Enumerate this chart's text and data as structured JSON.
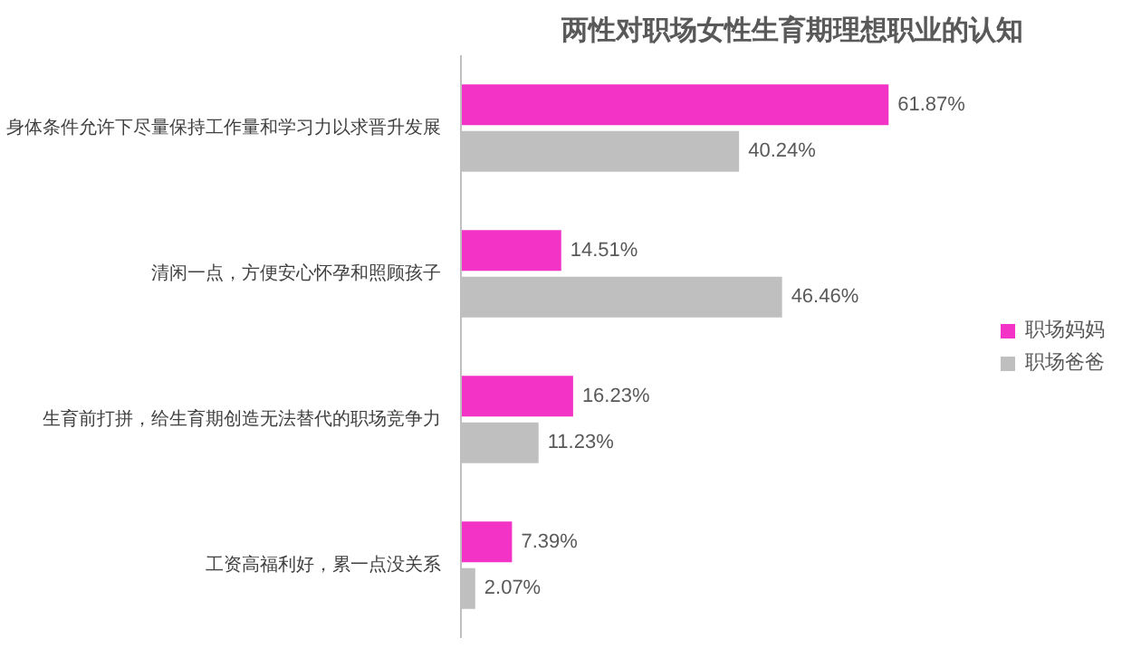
{
  "chart_data": {
    "type": "bar",
    "orientation": "horizontal",
    "title": "两性对职场女性生育期理想职业的认知",
    "categories": [
      "身体条件允许下尽量保持工作量和学习力以求晋升发展",
      "清闲一点，方便安心怀孕和照顾孩子",
      "生育前打拼，给生育期创造无法替代的职场竞争力",
      "工资高福利好，累一点没关系"
    ],
    "series": [
      {
        "name": "职场妈妈",
        "color": "#f233c6",
        "values": [
          61.87,
          14.51,
          16.23,
          7.39
        ],
        "value_labels": [
          "61.87%",
          "14.51%",
          "16.23%",
          "7.39%"
        ]
      },
      {
        "name": "职场爸爸",
        "color": "#bfbfbf",
        "values": [
          40.24,
          46.46,
          11.23,
          2.07
        ],
        "value_labels": [
          "40.24%",
          "46.46%",
          "11.23%",
          "2.07%"
        ]
      }
    ],
    "legend": "right",
    "grid": false
  }
}
